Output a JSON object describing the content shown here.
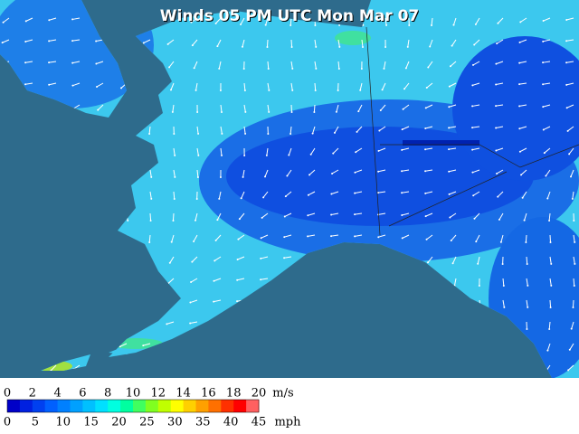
{
  "title": "Winds 05 PM UTC Mon Mar 07",
  "legend": {
    "ms_labels": [
      0,
      2,
      4,
      6,
      8,
      10,
      12,
      14,
      16,
      18,
      20
    ],
    "ms_unit": "m/s",
    "mph_labels": [
      0,
      5,
      10,
      15,
      20,
      25,
      30,
      35,
      40,
      45
    ],
    "mph_unit": "mph",
    "colors": [
      "#0000c8",
      "#0020e0",
      "#0040f0",
      "#0060ff",
      "#0080ff",
      "#00a0ff",
      "#00c0ff",
      "#00e0ff",
      "#00ffe0",
      "#00ffa0",
      "#40ff60",
      "#80ff20",
      "#c0ff00",
      "#ffff00",
      "#ffd000",
      "#ffa000",
      "#ff7000",
      "#ff3000",
      "#ff0000",
      "#ff6060"
    ]
  }
}
